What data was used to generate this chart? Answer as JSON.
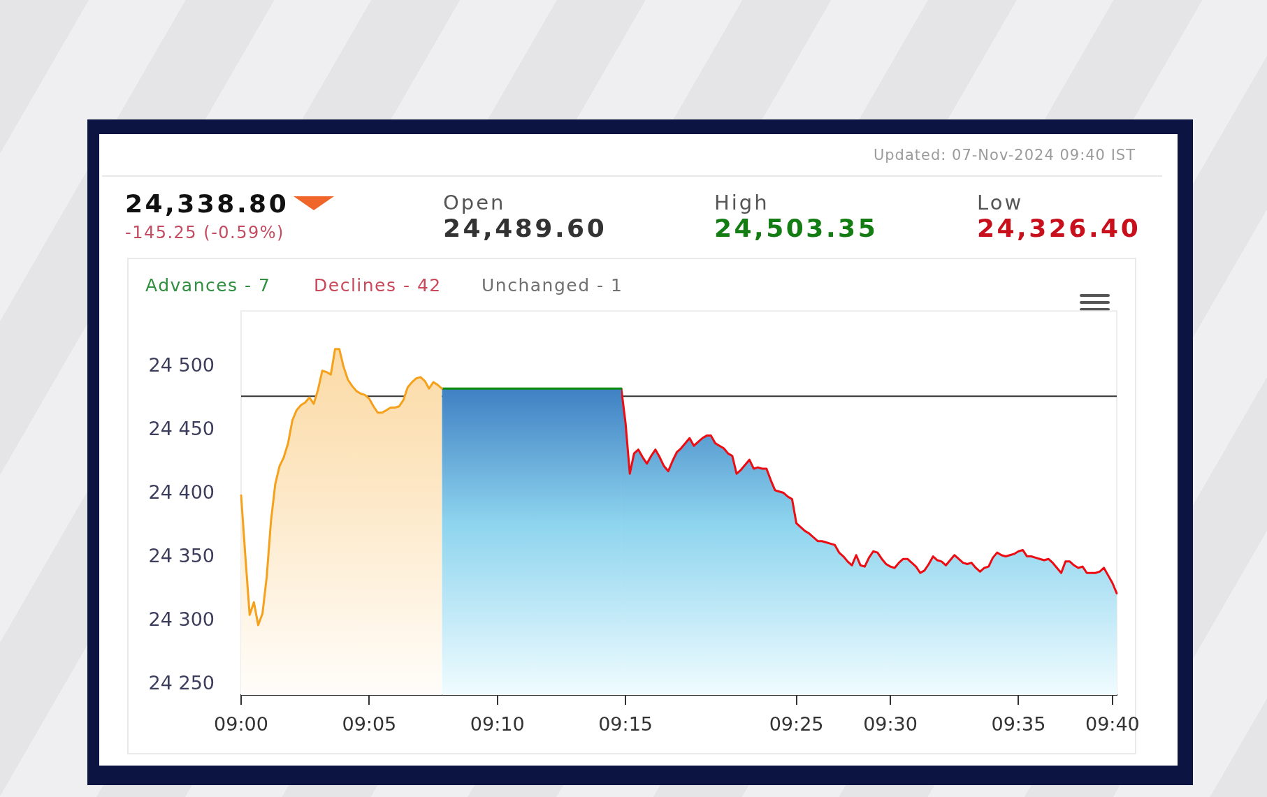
{
  "chart_data": {
    "type": "area",
    "title": "24,338.80",
    "subtitle": "-145.25 (-0.59%)",
    "annotations": [
      "Updated: 07-Nov-2024 09:40 IST",
      "Open",
      "24,489.60",
      "High",
      "24,503.35",
      "Low",
      "24,326.40",
      "Advances - 7",
      "Declines - 42",
      "Unchanged - 1"
    ],
    "categories": [
      "09:00",
      null,
      null,
      null,
      null,
      null,
      null,
      null,
      null,
      null,
      null,
      null,
      null,
      null,
      null,
      null,
      null,
      null,
      null,
      null,
      null,
      null,
      null,
      null,
      null,
      null,
      null,
      null,
      null,
      null,
      "09:05",
      null,
      null,
      null,
      null,
      null,
      null,
      null,
      null,
      null,
      null,
      null,
      null,
      null,
      null,
      null,
      null,
      null,
      null,
      null,
      null,
      null,
      null,
      null,
      null,
      null,
      null,
      null,
      null,
      null,
      "09:10",
      null,
      null,
      null,
      null,
      null,
      null,
      null,
      null,
      null,
      null,
      null,
      null,
      null,
      null,
      null,
      null,
      null,
      null,
      null,
      null,
      null,
      null,
      null,
      null,
      null,
      null,
      null,
      null,
      null,
      "09:15",
      null,
      null,
      null,
      null,
      null,
      null,
      null,
      null,
      null,
      null,
      null,
      null,
      null,
      null,
      null,
      null,
      null,
      null,
      null,
      null,
      null,
      null,
      null,
      null,
      null,
      null,
      null,
      null,
      null,
      null,
      null,
      null,
      null,
      null,
      null,
      null,
      null,
      null,
      null,
      "09:25",
      null,
      null,
      null,
      null,
      null,
      null,
      null,
      null,
      null,
      null,
      null,
      null,
      null,
      null,
      null,
      null,
      null,
      null,
      null,
      null,
      null,
      "09:30",
      null,
      null,
      null,
      null,
      null,
      null,
      null,
      null,
      null,
      null,
      null,
      null,
      null,
      null,
      null,
      null,
      null,
      null,
      null,
      null,
      null,
      null,
      null,
      null,
      null,
      null,
      null,
      null,
      null,
      "09:35",
      null,
      null,
      null,
      null,
      null,
      null,
      null,
      null,
      null,
      null,
      null,
      null,
      null,
      null,
      null,
      null,
      null,
      null,
      null,
      null,
      null,
      "09:40",
      null
    ],
    "series": [
      {
        "color": "#f5a11c",
        "values": [
          24399,
          24351,
          24305,
          24315,
          24297,
          24306,
          24335,
          24379,
          24408,
          24422,
          24429,
          24440,
          24458,
          24466,
          24470,
          24472,
          24476,
          24471,
          24482,
          24497,
          24496,
          24494,
          24514,
          24514,
          24500,
          24490,
          24485,
          24481,
          24479,
          24478,
          24475,
          24469,
          24464,
          24464,
          24466,
          24468,
          24468,
          24469,
          24474,
          24484,
          24488,
          24491,
          24492,
          24489,
          24483,
          24488,
          24486,
          24483,
          null,
          null,
          null,
          null,
          null,
          null,
          null,
          null,
          null,
          null,
          null,
          null,
          null,
          null,
          null,
          null,
          null,
          null,
          null,
          null,
          null,
          null,
          null,
          null,
          null,
          null,
          null,
          null,
          null,
          null,
          null,
          null,
          null,
          null,
          null,
          null,
          null,
          null,
          null,
          null,
          null,
          null,
          null,
          null,
          null,
          null,
          null,
          null,
          null,
          null,
          null,
          null,
          null,
          null,
          null,
          null,
          null,
          null,
          null,
          null,
          null,
          null,
          null,
          null,
          null,
          null,
          null,
          null,
          null,
          null,
          null,
          null,
          null,
          null,
          null,
          null,
          null,
          null,
          null,
          null,
          null,
          null,
          null,
          null,
          null,
          null,
          null,
          null,
          null,
          null,
          null,
          null,
          null,
          null,
          null,
          null,
          null,
          null,
          null,
          null,
          null,
          null,
          null,
          null,
          null,
          null,
          null,
          null,
          null,
          null,
          null,
          null,
          null,
          null,
          null,
          null,
          null,
          null,
          null,
          null,
          null,
          null,
          null,
          null,
          null,
          null,
          null,
          null,
          null,
          null,
          null,
          null,
          null,
          null,
          null,
          null,
          null,
          null,
          null,
          null,
          null,
          null,
          null,
          null,
          null,
          null,
          null,
          null,
          null,
          null,
          null,
          null,
          null,
          null,
          null,
          null,
          null,
          null
        ]
      },
      {
        "color": "#0a8a0a",
        "values": [
          null,
          null,
          null,
          null,
          null,
          null,
          null,
          null,
          null,
          null,
          null,
          null,
          null,
          null,
          null,
          null,
          null,
          null,
          null,
          null,
          null,
          null,
          null,
          null,
          null,
          null,
          null,
          null,
          null,
          null,
          null,
          null,
          null,
          null,
          null,
          null,
          null,
          null,
          null,
          null,
          null,
          null,
          null,
          null,
          null,
          null,
          null,
          24483,
          24483,
          24483,
          24483,
          24483,
          24483,
          24483,
          24483,
          24483,
          24483,
          24483,
          24483,
          24483,
          24483,
          24483,
          24483,
          24483,
          24483,
          24483,
          24483,
          24483,
          24483,
          24483,
          24483,
          24483,
          24483,
          24483,
          24483,
          24483,
          24483,
          24483,
          24483,
          24483,
          24483,
          24483,
          24483,
          24483,
          24483,
          24483,
          24483,
          24483,
          24483,
          24483,
          null,
          null,
          null,
          null,
          null,
          null,
          null,
          null,
          null,
          null,
          null,
          null,
          null,
          null,
          null,
          null,
          null,
          null,
          null,
          null,
          null,
          null,
          null,
          null,
          null,
          null,
          null,
          null,
          null,
          null,
          null,
          null,
          null,
          null,
          null,
          null,
          null,
          null,
          null,
          null,
          null,
          null,
          null,
          null,
          null,
          null,
          null,
          null,
          null,
          null,
          null,
          null,
          null,
          null,
          null,
          null,
          null,
          null,
          null,
          null,
          null,
          null,
          null,
          null,
          null,
          null,
          null,
          null,
          null,
          null,
          null,
          null,
          null,
          null,
          null,
          null,
          null,
          null,
          null,
          null,
          null,
          null,
          null,
          null,
          null,
          null,
          null,
          null,
          null,
          null,
          null,
          null,
          null,
          null,
          null,
          null,
          null,
          null,
          null,
          null,
          null,
          null,
          null,
          null,
          null,
          null,
          null,
          null,
          null,
          null,
          null,
          null,
          null,
          null,
          null,
          null
        ]
      },
      {
        "color": "#ec0c12",
        "values": [
          null,
          null,
          null,
          null,
          null,
          null,
          null,
          null,
          null,
          null,
          null,
          null,
          null,
          null,
          null,
          null,
          null,
          null,
          null,
          null,
          null,
          null,
          null,
          null,
          null,
          null,
          null,
          null,
          null,
          null,
          null,
          null,
          null,
          null,
          null,
          null,
          null,
          null,
          null,
          null,
          null,
          null,
          null,
          null,
          null,
          null,
          null,
          null,
          null,
          null,
          null,
          null,
          null,
          null,
          null,
          null,
          null,
          null,
          null,
          null,
          null,
          null,
          null,
          null,
          null,
          null,
          null,
          null,
          null,
          null,
          null,
          null,
          null,
          null,
          null,
          null,
          null,
          null,
          null,
          null,
          null,
          null,
          null,
          null,
          null,
          null,
          null,
          null,
          null,
          24483,
          24456,
          24416,
          24432,
          24435,
          24429,
          24424,
          24430,
          24435,
          24429,
          24422,
          24418,
          24426,
          24433,
          24436,
          24440,
          24444,
          24438,
          24441,
          24444,
          24446,
          24446,
          24440,
          24438,
          24436,
          24432,
          24430,
          24416,
          24419,
          24423,
          24427,
          24420,
          24421,
          24420,
          24420,
          24411,
          24403,
          24402,
          24401,
          24398,
          24396,
          24377,
          24374,
          24371,
          24369,
          24366,
          24363,
          24363,
          24362,
          24361,
          24360,
          24354,
          24351,
          24347,
          24344,
          24352,
          24344,
          24343,
          24350,
          24355,
          24354,
          24349,
          24345,
          24343,
          24342,
          24346,
          24349,
          24349,
          24346,
          24343,
          24338,
          24340,
          24345,
          24351,
          24348,
          24347,
          24344,
          24348,
          24352,
          24349,
          24346,
          24345,
          24346,
          24342,
          24339,
          24342,
          24343,
          24350,
          24354,
          24352,
          24351,
          24352,
          24353,
          24355,
          24356,
          24351,
          24351,
          24350,
          24349,
          24348,
          24349,
          24346,
          24342,
          24338,
          24347,
          24347,
          24344,
          24342,
          24343,
          24338,
          24338,
          24338,
          24339,
          24342,
          24336,
          24330,
          24322
        ]
      }
    ],
    "ylim": [
      24242,
      24544
    ],
    "yticks": [
      {
        "value": 24250,
        "label": "24 250"
      },
      {
        "value": 24300,
        "label": "24 300"
      },
      {
        "value": 24350,
        "label": "24 350"
      },
      {
        "value": 24400,
        "label": "24 400"
      },
      {
        "value": 24450,
        "label": "24 450"
      },
      {
        "value": 24500,
        "label": "24 500"
      }
    ],
    "ref_lines": [
      {
        "axis": "y",
        "value": 24477,
        "color": "#333333"
      }
    ]
  }
}
